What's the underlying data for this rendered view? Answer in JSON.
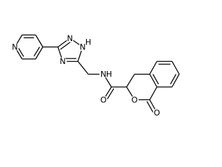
{
  "atoms": [
    "N",
    "N",
    "N",
    "N",
    "H",
    "N",
    "H",
    "O",
    "O",
    "O"
  ]
}
